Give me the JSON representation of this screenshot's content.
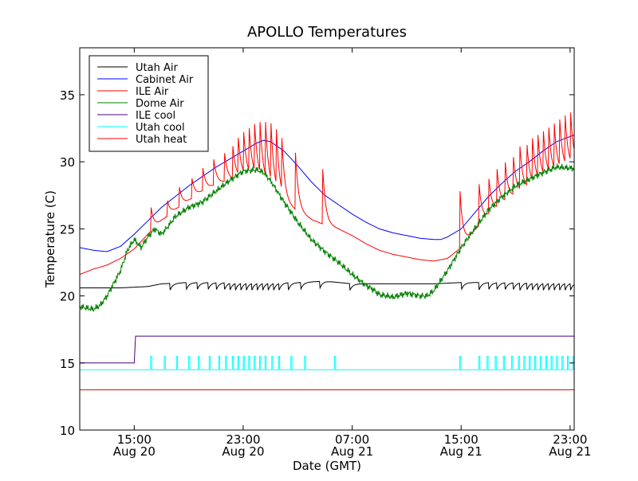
{
  "chart_data": {
    "type": "line",
    "title": "APOLLO Temperatures",
    "xlabel": "Date (GMT)",
    "ylabel": "Temperature (C)",
    "xlim_hours": [
      11.0,
      47.3
    ],
    "ylim": [
      10,
      38.5
    ],
    "y_ticks": [
      10,
      15,
      20,
      25,
      30,
      35
    ],
    "x_ticks": [
      {
        "hour": 15,
        "line1": "15:00",
        "line2": "Aug 20"
      },
      {
        "hour": 23,
        "line1": "23:00",
        "line2": "Aug 20"
      },
      {
        "hour": 31,
        "line1": "07:00",
        "line2": "Aug 21"
      },
      {
        "hour": 39,
        "line1": "15:00",
        "line2": "Aug 21"
      },
      {
        "hour": 47,
        "line1": "23:00",
        "line2": "Aug 21"
      }
    ],
    "legend_position": "top-left",
    "series": [
      {
        "name": "Utah Air",
        "color": "#000000",
        "x": [
          11.0,
          14.0,
          16.0,
          17.0,
          19.0,
          21.0,
          23.0,
          25.0,
          27.0,
          29.0,
          31.0,
          33.0,
          35.0,
          37.0,
          39.0,
          41.0,
          43.0,
          45.0,
          47.3
        ],
        "y": [
          20.6,
          20.6,
          20.7,
          20.9,
          21.0,
          21.0,
          21.0,
          21.0,
          21.0,
          21.1,
          20.9,
          20.9,
          20.9,
          20.9,
          21.0,
          21.0,
          21.0,
          21.0,
          21.0
        ],
        "spikes": [
          17.6,
          18.8,
          19.6,
          20.4,
          21.0,
          21.6,
          22.0,
          22.4,
          22.8,
          23.2,
          23.6,
          24.0,
          24.4,
          24.8,
          25.2,
          25.6,
          26.3,
          27.2,
          28.6,
          30.8,
          39.0,
          40.3,
          41.0,
          41.6,
          42.2,
          42.8,
          43.3,
          43.8,
          44.2,
          44.6,
          45.0,
          45.4,
          45.8,
          46.2,
          46.6,
          47.0
        ],
        "spike_drop": 0.6
      },
      {
        "name": "Cabinet Air",
        "color": "#0000ff",
        "x": [
          11.0,
          12.0,
          13.0,
          14.0,
          15.0,
          16.0,
          17.0,
          18.0,
          19.0,
          20.0,
          21.0,
          22.0,
          23.0,
          24.0,
          24.5,
          25.0,
          26.0,
          27.0,
          28.0,
          29.0,
          30.0,
          31.0,
          32.0,
          33.0,
          34.0,
          35.0,
          36.0,
          37.0,
          37.5,
          38.0,
          39.0,
          40.0,
          41.0,
          42.0,
          43.0,
          44.0,
          45.0,
          46.0,
          47.3
        ],
        "y": [
          23.6,
          23.4,
          23.3,
          23.7,
          24.6,
          25.6,
          26.6,
          27.4,
          28.2,
          28.9,
          29.6,
          30.2,
          30.8,
          31.4,
          31.6,
          31.5,
          30.8,
          29.7,
          28.5,
          27.5,
          26.8,
          26.1,
          25.5,
          25.0,
          24.7,
          24.5,
          24.3,
          24.2,
          24.2,
          24.4,
          25.0,
          26.2,
          27.4,
          28.4,
          29.3,
          30.0,
          30.8,
          31.5,
          32.0
        ]
      },
      {
        "name": "ILE Air",
        "color": "#ff0000",
        "x": [
          11.0,
          12.0,
          13.0,
          14.0,
          15.0,
          16.0,
          17.0,
          18.0,
          19.0,
          20.0,
          21.0,
          22.0,
          23.0,
          24.0,
          25.0,
          26.0,
          27.0,
          28.0,
          29.0,
          30.0,
          31.0,
          32.0,
          33.0,
          34.0,
          35.0,
          36.0,
          37.0,
          38.0,
          39.0,
          40.0,
          41.0,
          42.0,
          43.0,
          44.0,
          45.0,
          46.0,
          47.3
        ],
        "y": [
          21.6,
          22.0,
          22.3,
          22.8,
          23.5,
          24.6,
          25.6,
          26.4,
          27.1,
          27.8,
          28.3,
          28.6,
          28.8,
          28.8,
          28.0,
          27.0,
          26.3,
          25.7,
          25.3,
          25.0,
          24.5,
          23.9,
          23.4,
          23.1,
          22.9,
          22.7,
          22.6,
          22.8,
          23.6,
          24.9,
          26.0,
          26.8,
          27.5,
          28.0,
          28.6,
          29.0,
          29.6
        ],
        "spikes": [
          16.2,
          17.4,
          18.3,
          19.2,
          20.0,
          20.8,
          21.6,
          22.2,
          22.6,
          23.0,
          23.4,
          23.8,
          24.2,
          24.6,
          25.0,
          25.4,
          25.8,
          26.8,
          28.8,
          38.9,
          40.3,
          41.0,
          41.6,
          42.2,
          42.8,
          43.3,
          43.8,
          44.2,
          44.6,
          45.0,
          45.4,
          45.8,
          46.2,
          46.6,
          47.0
        ],
        "spike_heights": [
          26.9,
          27.3,
          28.2,
          29.0,
          29.8,
          30.5,
          31.0,
          31.5,
          31.9,
          32.3,
          32.6,
          32.9,
          33.1,
          33.1,
          33.0,
          32.5,
          31.8,
          31.5,
          30.3,
          28.2,
          28.6,
          29.1,
          29.8,
          30.3,
          30.7,
          31.1,
          31.5,
          31.8,
          32.0,
          32.3,
          32.6,
          32.9,
          33.2,
          33.5,
          33.7
        ]
      },
      {
        "name": "Dome Air",
        "color": "#008000",
        "x": [
          11.0,
          12.0,
          12.5,
          13.0,
          14.0,
          14.5,
          15.0,
          15.5,
          16.0,
          16.5,
          17.0,
          17.5,
          18.0,
          19.0,
          20.0,
          21.0,
          22.0,
          23.0,
          24.0,
          24.5,
          25.0,
          26.0,
          27.0,
          28.0,
          29.0,
          30.0,
          31.0,
          32.0,
          32.5,
          33.0,
          34.0,
          35.0,
          36.0,
          36.5,
          37.0,
          38.0,
          39.0,
          40.0,
          41.0,
          42.0,
          43.0,
          44.0,
          45.0,
          46.0,
          47.3
        ],
        "y": [
          19.2,
          19.0,
          19.3,
          20.0,
          21.9,
          23.4,
          24.2,
          23.6,
          24.4,
          25.0,
          24.6,
          25.2,
          25.9,
          26.6,
          27.0,
          27.8,
          28.6,
          29.3,
          29.4,
          29.2,
          28.6,
          27.0,
          25.5,
          24.2,
          23.3,
          22.5,
          21.6,
          20.8,
          20.5,
          20.1,
          19.9,
          20.2,
          20.0,
          20.0,
          20.4,
          21.9,
          23.6,
          25.0,
          26.4,
          27.4,
          28.2,
          28.7,
          29.2,
          29.6,
          29.5
        ]
      },
      {
        "name": "ILE cool",
        "color": "#4b0082",
        "x": [
          11.0,
          15.0,
          15.1,
          47.3
        ],
        "y": [
          15.0,
          15.0,
          17.0,
          17.0
        ]
      },
      {
        "name": "Utah cool",
        "color": "#00ffff",
        "x": [
          11.0,
          47.3
        ],
        "y": [
          14.5,
          14.5
        ],
        "pulses": [
          16.2,
          17.2,
          18.1,
          19.0,
          19.7,
          20.5,
          21.2,
          21.7,
          22.2,
          22.6,
          23.0,
          23.4,
          23.8,
          24.2,
          24.6,
          25.1,
          25.6,
          26.5,
          27.5,
          29.7,
          38.9,
          40.3,
          40.9,
          41.5,
          42.1,
          42.7,
          43.2,
          43.6,
          44.0,
          44.4,
          44.8,
          45.2,
          45.6,
          46.0,
          46.4,
          46.8,
          47.2
        ],
        "pulse_high": 15.5
      },
      {
        "name": "Utah heat",
        "color": "#ff0000",
        "x": [
          11.0,
          47.3
        ],
        "y": [
          13.0,
          13.0
        ]
      }
    ]
  }
}
